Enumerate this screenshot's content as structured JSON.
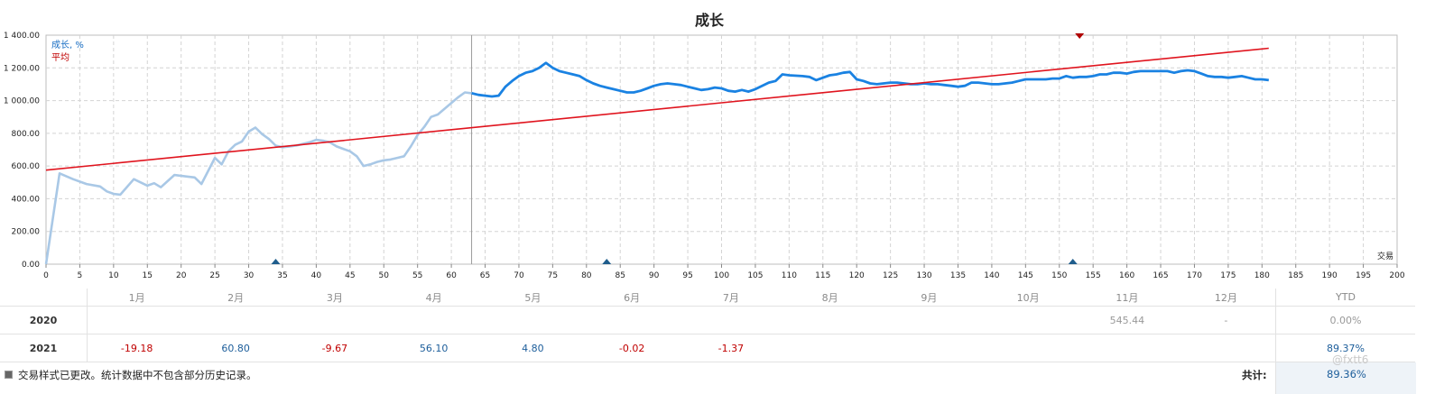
{
  "chart_data": {
    "type": "line",
    "title": "成长",
    "xlabel": "交易",
    "ylabel": "",
    "xlim": [
      0,
      200
    ],
    "ylim": [
      0,
      1400
    ],
    "x_ticks": [
      0,
      5,
      10,
      15,
      20,
      25,
      30,
      35,
      40,
      45,
      50,
      55,
      60,
      65,
      70,
      75,
      80,
      85,
      90,
      95,
      100,
      105,
      110,
      115,
      120,
      125,
      130,
      135,
      140,
      145,
      150,
      155,
      160,
      165,
      170,
      175,
      180,
      185,
      190,
      195,
      200
    ],
    "y_ticks": [
      "0.00",
      "200.00",
      "400.00",
      "600.00",
      "800.00",
      "1 000.00",
      "1 200.00",
      "1 400.00"
    ],
    "y_tick_values": [
      0,
      200,
      400,
      600,
      800,
      1000,
      1200,
      1400
    ],
    "grid": true,
    "legend_position": "top-left",
    "legend": [
      "成长, %",
      "平均"
    ],
    "divider_x": 63,
    "series": [
      {
        "name": "成长, %",
        "color_history": "#a9c8e6",
        "color": "#1a82e2",
        "points": [
          [
            0,
            0
          ],
          [
            2,
            555
          ],
          [
            4,
            520
          ],
          [
            6,
            490
          ],
          [
            8,
            475
          ],
          [
            9,
            445
          ],
          [
            10,
            430
          ],
          [
            11,
            425
          ],
          [
            13,
            520
          ],
          [
            15,
            480
          ],
          [
            16,
            495
          ],
          [
            17,
            470
          ],
          [
            19,
            545
          ],
          [
            21,
            535
          ],
          [
            22,
            530
          ],
          [
            23,
            490
          ],
          [
            25,
            650
          ],
          [
            26,
            610
          ],
          [
            27,
            690
          ],
          [
            28,
            730
          ],
          [
            29,
            750
          ],
          [
            30,
            810
          ],
          [
            31,
            835
          ],
          [
            32,
            795
          ],
          [
            33,
            765
          ],
          [
            34,
            725
          ],
          [
            35,
            715
          ],
          [
            36,
            720
          ],
          [
            37,
            725
          ],
          [
            38,
            735
          ],
          [
            39,
            745
          ],
          [
            40,
            760
          ],
          [
            41,
            755
          ],
          [
            42,
            745
          ],
          [
            43,
            720
          ],
          [
            44,
            705
          ],
          [
            45,
            690
          ],
          [
            46,
            660
          ],
          [
            47,
            600
          ],
          [
            48,
            610
          ],
          [
            49,
            625
          ],
          [
            50,
            635
          ],
          [
            51,
            640
          ],
          [
            52,
            650
          ],
          [
            53,
            660
          ],
          [
            54,
            720
          ],
          [
            55,
            790
          ],
          [
            56,
            840
          ],
          [
            57,
            900
          ],
          [
            58,
            915
          ],
          [
            59,
            950
          ],
          [
            60,
            985
          ],
          [
            61,
            1020
          ],
          [
            62,
            1050
          ],
          [
            63,
            1045
          ],
          [
            64,
            1035
          ],
          [
            65,
            1030
          ],
          [
            66,
            1025
          ],
          [
            67,
            1030
          ],
          [
            68,
            1085
          ],
          [
            69,
            1120
          ],
          [
            70,
            1150
          ],
          [
            71,
            1170
          ],
          [
            72,
            1180
          ],
          [
            73,
            1200
          ],
          [
            74,
            1230
          ],
          [
            75,
            1200
          ],
          [
            76,
            1180
          ],
          [
            77,
            1170
          ],
          [
            78,
            1160
          ],
          [
            79,
            1150
          ],
          [
            80,
            1125
          ],
          [
            81,
            1105
          ],
          [
            82,
            1090
          ],
          [
            83,
            1080
          ],
          [
            84,
            1070
          ],
          [
            85,
            1060
          ],
          [
            86,
            1050
          ],
          [
            87,
            1050
          ],
          [
            88,
            1060
          ],
          [
            89,
            1075
          ],
          [
            90,
            1090
          ],
          [
            91,
            1100
          ],
          [
            92,
            1105
          ],
          [
            93,
            1100
          ],
          [
            94,
            1095
          ],
          [
            95,
            1085
          ],
          [
            96,
            1075
          ],
          [
            97,
            1065
          ],
          [
            98,
            1070
          ],
          [
            99,
            1080
          ],
          [
            100,
            1075
          ],
          [
            101,
            1060
          ],
          [
            102,
            1055
          ],
          [
            103,
            1065
          ],
          [
            104,
            1055
          ],
          [
            105,
            1070
          ],
          [
            106,
            1090
          ],
          [
            107,
            1110
          ],
          [
            108,
            1120
          ],
          [
            109,
            1160
          ],
          [
            110,
            1155
          ],
          [
            112,
            1150
          ],
          [
            113,
            1145
          ],
          [
            114,
            1125
          ],
          [
            115,
            1140
          ],
          [
            116,
            1155
          ],
          [
            117,
            1160
          ],
          [
            118,
            1170
          ],
          [
            119,
            1175
          ],
          [
            120,
            1130
          ],
          [
            121,
            1120
          ],
          [
            122,
            1105
          ],
          [
            123,
            1100
          ],
          [
            124,
            1105
          ],
          [
            125,
            1110
          ],
          [
            126,
            1110
          ],
          [
            127,
            1105
          ],
          [
            128,
            1100
          ],
          [
            129,
            1100
          ],
          [
            130,
            1105
          ],
          [
            131,
            1100
          ],
          [
            132,
            1100
          ],
          [
            133,
            1095
          ],
          [
            134,
            1090
          ],
          [
            135,
            1085
          ],
          [
            136,
            1090
          ],
          [
            137,
            1110
          ],
          [
            138,
            1110
          ],
          [
            139,
            1105
          ],
          [
            140,
            1100
          ],
          [
            141,
            1100
          ],
          [
            142,
            1105
          ],
          [
            143,
            1110
          ],
          [
            144,
            1120
          ],
          [
            145,
            1130
          ],
          [
            146,
            1130
          ],
          [
            147,
            1130
          ],
          [
            148,
            1130
          ],
          [
            149,
            1135
          ],
          [
            150,
            1135
          ],
          [
            151,
            1150
          ],
          [
            152,
            1140
          ],
          [
            153,
            1145
          ],
          [
            154,
            1145
          ],
          [
            155,
            1150
          ],
          [
            156,
            1160
          ],
          [
            157,
            1160
          ],
          [
            158,
            1170
          ],
          [
            159,
            1170
          ],
          [
            160,
            1165
          ],
          [
            161,
            1175
          ],
          [
            162,
            1180
          ],
          [
            163,
            1180
          ],
          [
            164,
            1180
          ],
          [
            165,
            1180
          ],
          [
            166,
            1180
          ],
          [
            167,
            1170
          ],
          [
            168,
            1180
          ],
          [
            169,
            1185
          ],
          [
            170,
            1180
          ],
          [
            171,
            1165
          ],
          [
            172,
            1150
          ],
          [
            173,
            1145
          ],
          [
            174,
            1145
          ],
          [
            175,
            1140
          ],
          [
            176,
            1145
          ],
          [
            177,
            1150
          ],
          [
            178,
            1140
          ],
          [
            179,
            1130
          ],
          [
            180,
            1130
          ],
          [
            181,
            1125
          ]
        ]
      },
      {
        "name": "平均",
        "color": "#e0141e",
        "points": [
          [
            0,
            575
          ],
          [
            181,
            1320
          ]
        ]
      }
    ],
    "markers": [
      {
        "x": 34,
        "shape": "triangle-up",
        "color": "#1f5d8c"
      },
      {
        "x": 83,
        "shape": "triangle-up",
        "color": "#1f5d8c"
      },
      {
        "x": 152,
        "shape": "triangle-up",
        "color": "#1f5d8c"
      },
      {
        "x": 153,
        "shape": "triangle-down-top",
        "color": "#b00000"
      }
    ]
  },
  "table": {
    "months": [
      "1月",
      "2月",
      "3月",
      "4月",
      "5月",
      "6月",
      "7月",
      "8月",
      "9月",
      "10月",
      "11月",
      "12月"
    ],
    "ytd_label": "YTD",
    "rows": [
      {
        "year": "2020",
        "values": [
          "",
          "",
          "",
          "",
          "",
          "",
          "",
          "",
          "",
          "",
          "545.44",
          "-"
        ],
        "tones": [
          "",
          "",
          "",
          "",
          "",
          "",
          "",
          "",
          "",
          "",
          "mut",
          "mut"
        ],
        "ytd": "0.00%",
        "ytd_tone": "mut"
      },
      {
        "year": "2021",
        "values": [
          "-19.18",
          "60.80",
          "-9.67",
          "56.10",
          "4.80",
          "-0.02",
          "-1.37",
          "",
          "",
          "",
          "",
          ""
        ],
        "tones": [
          "neg",
          "pos",
          "neg",
          "pos",
          "pos",
          "neg",
          "neg",
          "",
          "",
          "",
          "",
          ""
        ],
        "ytd": "89.37%",
        "ytd_tone": "pos"
      }
    ]
  },
  "footer": {
    "notice": "交易样式已更改。统计数据中不包含部分历史记录。",
    "total_label": "共计:",
    "total_value": "89.36%"
  },
  "watermark": "@fxtt6"
}
